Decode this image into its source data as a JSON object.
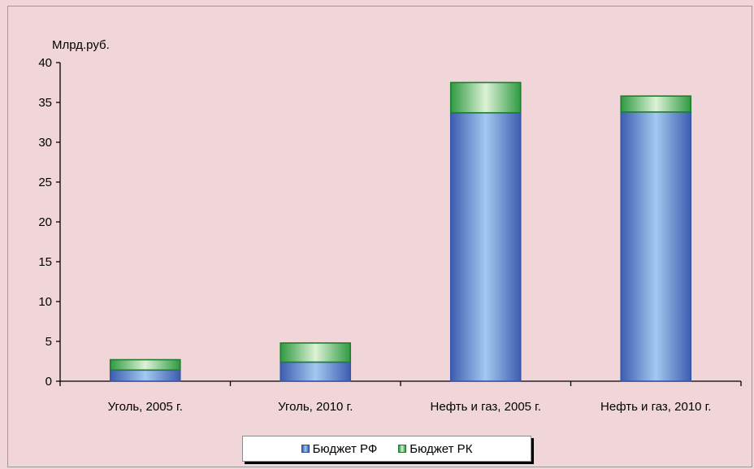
{
  "chart_data": {
    "type": "bar",
    "stacked": true,
    "ylabel": "Млрд.руб.",
    "ylim": [
      0,
      40
    ],
    "yticks": [
      0,
      5,
      10,
      15,
      20,
      25,
      30,
      35,
      40
    ],
    "grid": false,
    "legend_position": "bottom",
    "categories": [
      "Уголь, 2005 г.",
      "Уголь, 2010 г.",
      "Нефть и газ, 2005 г.",
      "Нефть и газ, 2010 г."
    ],
    "series": [
      {
        "name": "Бюджет РФ",
        "values": [
          1.4,
          2.4,
          33.7,
          33.8
        ],
        "color": "#5a7fd0"
      },
      {
        "name": "Бюджет РК",
        "values": [
          1.3,
          2.4,
          3.8,
          2.0
        ],
        "color": "#3aa24c"
      }
    ]
  }
}
